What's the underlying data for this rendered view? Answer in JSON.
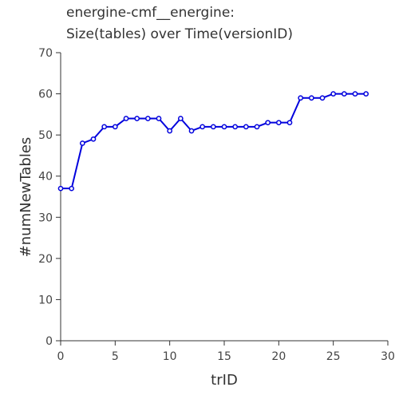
{
  "chart_data": {
    "type": "line",
    "title_lines": [
      "energine-cmf__energine:",
      "Size(tables) over Time(versionID)"
    ],
    "xlabel": "trID",
    "ylabel": "#numNewTables",
    "xlim": [
      0,
      30
    ],
    "ylim": [
      0,
      70
    ],
    "xticks": [
      0,
      5,
      10,
      15,
      20,
      25,
      30
    ],
    "yticks": [
      0,
      10,
      20,
      30,
      40,
      50,
      60,
      70
    ],
    "grid": false,
    "line_color": "#0000dd",
    "series": [
      {
        "x": [
          0,
          1,
          2,
          3,
          4,
          5,
          6,
          7,
          8,
          9,
          10,
          11,
          12,
          13,
          14,
          15,
          16,
          17,
          18,
          19,
          20,
          21,
          22,
          23,
          24,
          25,
          26,
          27,
          28
        ],
        "values": [
          37,
          37,
          48,
          49,
          52,
          52,
          54,
          54,
          54,
          54,
          51,
          54,
          51,
          52,
          52,
          52,
          52,
          52,
          52,
          53,
          53,
          53,
          59,
          59,
          59,
          60,
          60,
          60,
          60
        ]
      }
    ]
  }
}
